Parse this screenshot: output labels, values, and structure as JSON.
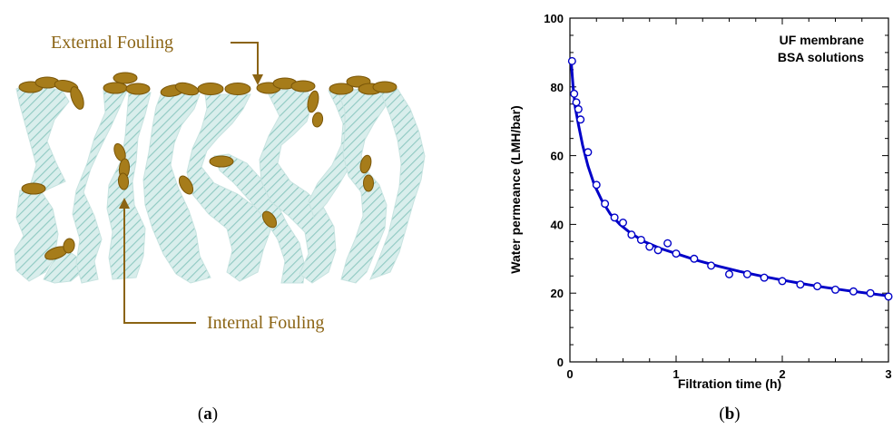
{
  "colors": {
    "foulant_fill": "#a67c1a",
    "foulant_stroke": "#8a6410",
    "fouling_text": "#8b6414",
    "arrow": "#8b6414",
    "membrane_fill": "#cfe8e8",
    "membrane_hatch": "#9fd0cc",
    "series_line": "#0000c8",
    "axis": "#000000"
  },
  "panel_a": {
    "external_label": "External Fouling",
    "internal_label": "Internal Fouling",
    "caption_open": "(",
    "caption_letter": "a",
    "caption_close": ")"
  },
  "panel_b": {
    "caption_open": "(",
    "caption_letter": "b",
    "caption_close": ")"
  },
  "chart_data": {
    "type": "line",
    "title": "",
    "annotation_lines": [
      "UF membrane",
      "BSA solutions"
    ],
    "xlabel": "Filtration time (h)",
    "ylabel": "Water permeance (LMH/bar)",
    "xlim": [
      0,
      3
    ],
    "ylim": [
      0,
      100
    ],
    "xticks": [
      0,
      1,
      2,
      3
    ],
    "yticks": [
      0,
      20,
      40,
      60,
      80,
      100
    ],
    "xtick_labels": [
      "0",
      "1",
      "2",
      "3"
    ],
    "ytick_labels": [
      "0",
      "20",
      "40",
      "60",
      "80",
      "100"
    ],
    "grid": false,
    "series": [
      {
        "markers": "open-circle",
        "x": [
          0.02,
          0.04,
          0.06,
          0.08,
          0.1,
          0.17,
          0.25,
          0.33,
          0.42,
          0.5,
          0.58,
          0.67,
          0.75,
          0.83,
          0.92,
          1.0,
          1.17,
          1.33,
          1.5,
          1.67,
          1.83,
          2.0,
          2.17,
          2.33,
          2.5,
          2.67,
          2.83,
          3.0
        ],
        "y": [
          87.5,
          78,
          75.5,
          73.5,
          70.5,
          61,
          51.5,
          46,
          42,
          40.5,
          37,
          35.5,
          33.5,
          32.5,
          34.5,
          31.5,
          30,
          28,
          25.5,
          25.5,
          24.5,
          23.5,
          22.5,
          22,
          21,
          20.5,
          20,
          19
        ]
      }
    ],
    "fit_curve": {
      "x": [
        0.01,
        0.03,
        0.05,
        0.08,
        0.12,
        0.17,
        0.23,
        0.3,
        0.38,
        0.47,
        0.57,
        0.7,
        0.85,
        1.0,
        1.2,
        1.4,
        1.6,
        1.8,
        2.0,
        2.2,
        2.4,
        2.6,
        2.8,
        3.0
      ],
      "y": [
        88,
        80,
        74,
        69,
        63,
        57,
        51.5,
        47,
        43,
        40,
        37.5,
        35,
        33,
        31.5,
        29.5,
        27.8,
        26.3,
        25,
        23.8,
        22.7,
        21.7,
        20.8,
        20,
        19.2
      ]
    }
  }
}
